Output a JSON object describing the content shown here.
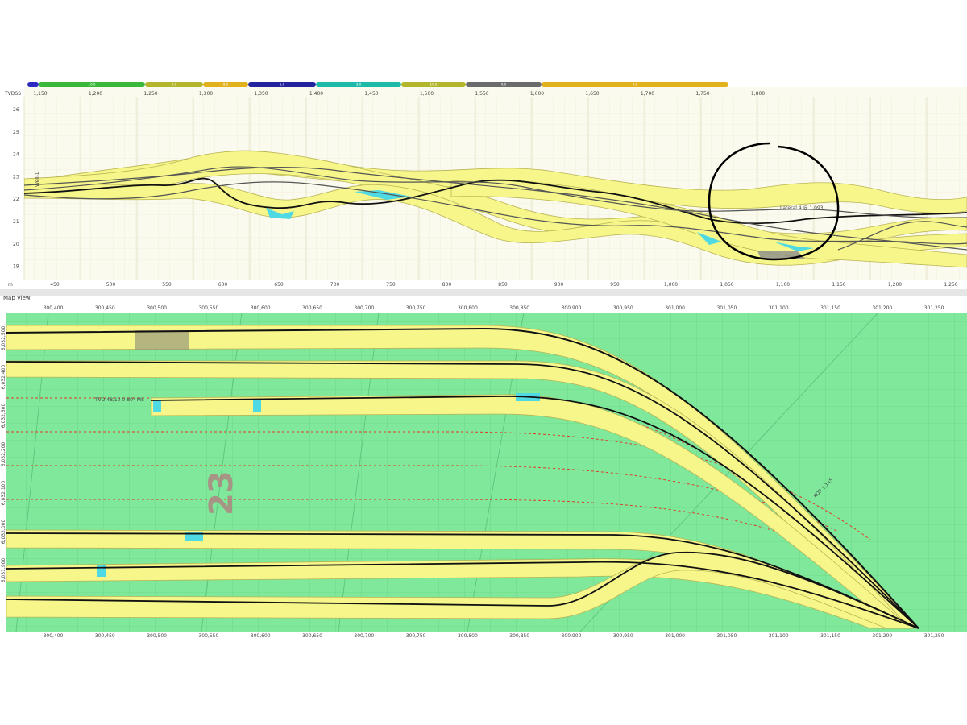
{
  "colors": {
    "section_profile_bg": "#fbfaee",
    "map_bg": "#7fe89a",
    "corridor": "#f6f68a",
    "corridor_dark": "#d9d46a",
    "edge_cyan": "#4fd9e3",
    "well_line": "#111111",
    "planned_line": "#e03a2a",
    "annotation_circle": "#000000"
  },
  "formation_bar": {
    "segments": [
      {
        "name": "seg1",
        "color": "#2c2ac2",
        "label": ""
      },
      {
        "name": "seg2",
        "color": "#3ab83a",
        "label": "10.0"
      },
      {
        "name": "seg3",
        "color": "#b3b52a",
        "label": "9.0"
      },
      {
        "name": "seg4",
        "color": "#e2b21d",
        "label": "8.0"
      },
      {
        "name": "seg5",
        "color": "#23239e",
        "label": "5.0"
      },
      {
        "name": "seg6",
        "color": "#1dbaaa",
        "label": "3.0"
      },
      {
        "name": "seg7",
        "color": "#b3b52a",
        "label": "10.0"
      },
      {
        "name": "seg8",
        "color": "#6b6b6b",
        "label": "0.0"
      },
      {
        "name": "seg9",
        "color": "#e2b21d",
        "label": "9.0"
      }
    ]
  },
  "profile_view": {
    "top_axis_title": "TVDSS",
    "top_ticks": [
      "1,150",
      "1,200",
      "1,250",
      "1,300",
      "1,350",
      "1,400",
      "1,450",
      "1,500",
      "1,550",
      "1,600",
      "1,650",
      "1,700",
      "1,750",
      "1,800"
    ],
    "bottom_axis_title": "m",
    "bottom_ticks": [
      "450",
      "500",
      "550",
      "600",
      "650",
      "700",
      "750",
      "800",
      "850",
      "900",
      "950",
      "1,000",
      "1,050",
      "1,100",
      "1,150",
      "1,200",
      "1,250"
    ],
    "y_ticks": [
      "26",
      "25",
      "24",
      "23",
      "22",
      "21",
      "20",
      "19"
    ],
    "well_label_left": "Well-1",
    "annotation_label": "Lateral 4 @ 1,093"
  },
  "map_view": {
    "title": "Map View",
    "top_ticks": [
      "300,400",
      "300,450",
      "300,500",
      "300,550",
      "300,600",
      "300,650",
      "300,700",
      "300,750",
      "300,800",
      "300,850",
      "300,900",
      "300,950",
      "301,000",
      "301,050",
      "301,100",
      "301,150",
      "301,200",
      "301,250"
    ],
    "bottom_ticks": [
      "300,400",
      "300,450",
      "300,500",
      "300,550",
      "300,600",
      "300,650",
      "300,700",
      "300,750",
      "300,800",
      "300,850",
      "300,900",
      "300,950",
      "301,000",
      "301,050",
      "301,100",
      "301,150",
      "301,200",
      "301,250"
    ],
    "y_ticks": [
      "6,032,500",
      "6,032,400",
      "6,032,300",
      "6,032,200",
      "6,032,100",
      "6,032,000",
      "6,031,900"
    ],
    "section_number": "23",
    "lateral_label": "TVD 48,10 0-80° MS",
    "kop_label": "KOP 1,145"
  }
}
